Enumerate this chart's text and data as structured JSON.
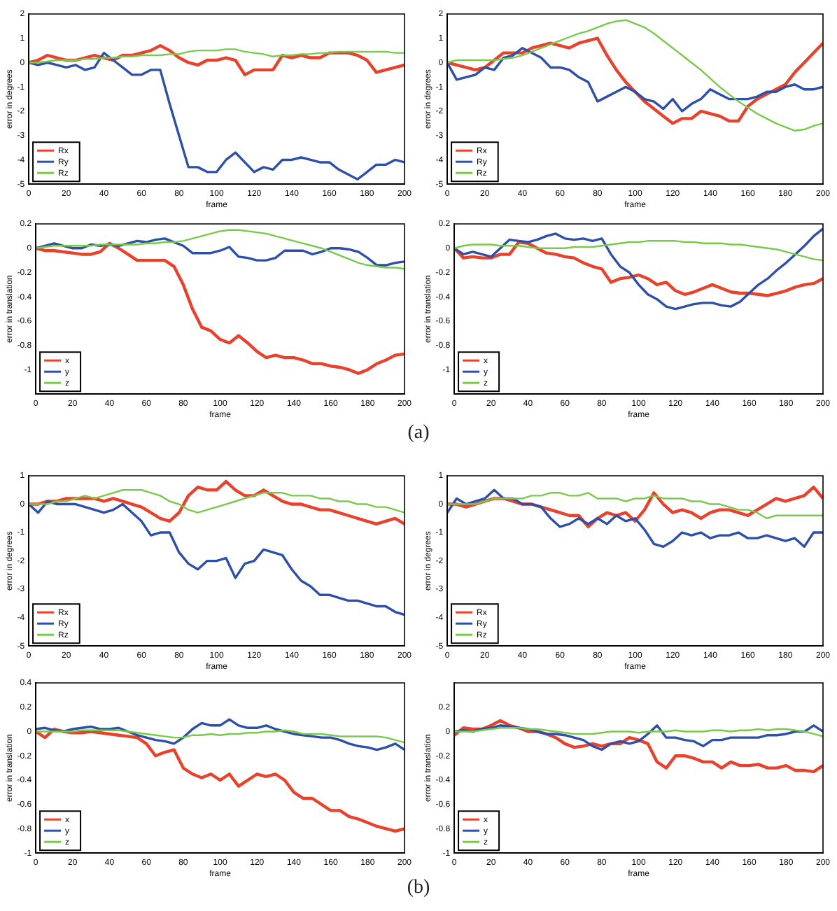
{
  "chart_data": [
    {
      "type": "line",
      "xlabel": "frame",
      "ylabel": "error in degrees",
      "legend": "bottom left",
      "xlim": [
        0,
        200
      ],
      "xticks": [
        0,
        20,
        40,
        60,
        80,
        100,
        120,
        140,
        160,
        180,
        200
      ],
      "ylim": [
        -5,
        2
      ],
      "yticks": [
        -5,
        -4,
        -3,
        -2,
        -1,
        0,
        1,
        2
      ],
      "x": [
        0,
        5,
        10,
        15,
        20,
        25,
        30,
        35,
        40,
        45,
        50,
        55,
        60,
        65,
        70,
        75,
        80,
        85,
        90,
        95,
        100,
        105,
        110,
        115,
        120,
        125,
        130,
        135,
        140,
        145,
        150,
        155,
        160,
        165,
        170,
        175,
        180,
        185,
        190,
        195,
        200
      ],
      "series": [
        {
          "name": "Rx",
          "color": "#e8412c",
          "values": [
            0,
            0.1,
            0.3,
            0.2,
            0.1,
            0.1,
            0.2,
            0.3,
            0.2,
            0.1,
            0.3,
            0.3,
            0.4,
            0.5,
            0.7,
            0.5,
            0.2,
            0.0,
            -0.1,
            0.1,
            0.1,
            0.2,
            0.1,
            -0.5,
            -0.3,
            -0.3,
            -0.3,
            0.3,
            0.2,
            0.3,
            0.2,
            0.2,
            0.4,
            0.4,
            0.4,
            0.3,
            0.1,
            -0.4,
            -0.3,
            -0.2,
            -0.1
          ]
        },
        {
          "name": "Ry",
          "color": "#2e4fa8",
          "values": [
            0,
            -0.1,
            0,
            -0.1,
            -0.2,
            -0.1,
            -0.3,
            -0.2,
            0.4,
            0.1,
            -0.2,
            -0.5,
            -0.5,
            -0.3,
            -0.3,
            -1.7,
            -3.0,
            -4.3,
            -4.3,
            -4.5,
            -4.5,
            -4.0,
            -3.7,
            -4.1,
            -4.5,
            -4.3,
            -4.4,
            -4.0,
            -4.0,
            -3.9,
            -4.0,
            -4.1,
            -4.1,
            -4.4,
            -4.6,
            -4.8,
            -4.5,
            -4.2,
            -4.2,
            -4.0,
            -4.1
          ]
        },
        {
          "name": "Rz",
          "color": "#79c94a",
          "values": [
            0,
            0,
            0.05,
            0.1,
            0.1,
            0.1,
            0.15,
            0.15,
            0.2,
            0.2,
            0.25,
            0.25,
            0.3,
            0.3,
            0.3,
            0.35,
            0.35,
            0.45,
            0.5,
            0.5,
            0.5,
            0.55,
            0.55,
            0.45,
            0.4,
            0.35,
            0.25,
            0.3,
            0.3,
            0.35,
            0.35,
            0.4,
            0.4,
            0.45,
            0.45,
            0.45,
            0.45,
            0.45,
            0.45,
            0.4,
            0.4
          ]
        }
      ]
    },
    {
      "type": "line",
      "xlabel": "frame",
      "ylabel": "error in degrees",
      "legend": "bottom left",
      "xlim": [
        0,
        200
      ],
      "xticks": [
        0,
        20,
        40,
        60,
        80,
        100,
        120,
        140,
        160,
        180,
        200
      ],
      "ylim": [
        -5,
        2
      ],
      "yticks": [
        -5,
        -4,
        -3,
        -2,
        -1,
        0,
        1,
        2
      ],
      "x": [
        0,
        5,
        10,
        15,
        20,
        25,
        30,
        35,
        40,
        45,
        50,
        55,
        60,
        65,
        70,
        75,
        80,
        85,
        90,
        95,
        100,
        105,
        110,
        115,
        120,
        125,
        130,
        135,
        140,
        145,
        150,
        155,
        160,
        165,
        170,
        175,
        180,
        185,
        190,
        195,
        200
      ],
      "series": [
        {
          "name": "Rx",
          "color": "#e8412c",
          "values": [
            0,
            -0.1,
            -0.2,
            -0.3,
            -0.2,
            0.1,
            0.4,
            0.4,
            0.4,
            0.6,
            0.7,
            0.8,
            0.7,
            0.6,
            0.8,
            0.9,
            1.0,
            0.3,
            -0.3,
            -0.8,
            -1.2,
            -1.6,
            -1.9,
            -2.2,
            -2.5,
            -2.3,
            -2.3,
            -2.0,
            -2.1,
            -2.2,
            -2.4,
            -2.4,
            -1.8,
            -1.5,
            -1.3,
            -1.1,
            -0.9,
            -0.4,
            0.0,
            0.4,
            0.8
          ]
        },
        {
          "name": "Ry",
          "color": "#2e4fa8",
          "values": [
            0,
            -0.7,
            -0.6,
            -0.5,
            -0.2,
            -0.3,
            0.2,
            0.3,
            0.6,
            0.4,
            0.2,
            -0.2,
            -0.2,
            -0.3,
            -0.6,
            -0.8,
            -1.6,
            -1.4,
            -1.2,
            -1.0,
            -1.2,
            -1.5,
            -1.6,
            -1.9,
            -1.5,
            -2.0,
            -1.7,
            -1.5,
            -1.1,
            -1.3,
            -1.5,
            -1.5,
            -1.5,
            -1.4,
            -1.2,
            -1.2,
            -1.0,
            -0.9,
            -1.1,
            -1.1,
            -1.0
          ]
        },
        {
          "name": "Rz",
          "color": "#79c94a",
          "values": [
            0,
            0.1,
            0.1,
            0.1,
            0.1,
            0.1,
            0.15,
            0.2,
            0.3,
            0.45,
            0.6,
            0.75,
            0.9,
            1.05,
            1.2,
            1.3,
            1.45,
            1.6,
            1.7,
            1.75,
            1.6,
            1.45,
            1.2,
            0.9,
            0.6,
            0.3,
            0.0,
            -0.3,
            -0.65,
            -1.0,
            -1.3,
            -1.6,
            -1.85,
            -2.1,
            -2.3,
            -2.5,
            -2.65,
            -2.8,
            -2.75,
            -2.6,
            -2.5
          ]
        }
      ]
    },
    {
      "type": "line",
      "xlabel": "frame",
      "ylabel": "error in translation",
      "legend": "bottom left",
      "xlim": [
        0,
        200
      ],
      "xticks": [
        0,
        20,
        40,
        60,
        80,
        100,
        120,
        140,
        160,
        180,
        200
      ],
      "ylim": [
        -1.2,
        0.2
      ],
      "yticks": [
        -1,
        -0.8,
        -0.6,
        -0.4,
        -0.2,
        0,
        0.2
      ],
      "x": [
        0,
        5,
        10,
        15,
        20,
        25,
        30,
        35,
        40,
        45,
        50,
        55,
        60,
        65,
        70,
        75,
        80,
        85,
        90,
        95,
        100,
        105,
        110,
        115,
        120,
        125,
        130,
        135,
        140,
        145,
        150,
        155,
        160,
        165,
        170,
        175,
        180,
        185,
        190,
        195,
        200
      ],
      "series": [
        {
          "name": "x",
          "color": "#e8412c",
          "values": [
            0,
            -0.02,
            -0.02,
            -0.03,
            -0.04,
            -0.05,
            -0.05,
            -0.03,
            0.04,
            0.0,
            -0.05,
            -0.1,
            -0.1,
            -0.1,
            -0.1,
            -0.15,
            -0.3,
            -0.5,
            -0.65,
            -0.68,
            -0.75,
            -0.78,
            -0.72,
            -0.78,
            -0.85,
            -0.9,
            -0.88,
            -0.9,
            -0.9,
            -0.92,
            -0.95,
            -0.95,
            -0.97,
            -0.98,
            -1.0,
            -1.03,
            -1.0,
            -0.95,
            -0.92,
            -0.88,
            -0.87
          ]
        },
        {
          "name": "y",
          "color": "#2e4fa8",
          "values": [
            0,
            0.02,
            0.04,
            0.02,
            0.0,
            0.0,
            0.03,
            0.02,
            0.03,
            0.02,
            0.04,
            0.06,
            0.05,
            0.07,
            0.08,
            0.05,
            0.02,
            -0.04,
            -0.04,
            -0.04,
            -0.02,
            0.01,
            -0.07,
            -0.08,
            -0.1,
            -0.1,
            -0.08,
            -0.02,
            -0.02,
            -0.02,
            -0.05,
            -0.03,
            0.0,
            0.0,
            -0.01,
            -0.03,
            -0.08,
            -0.14,
            -0.14,
            -0.12,
            -0.11
          ]
        },
        {
          "name": "z",
          "color": "#79c94a",
          "values": [
            0,
            0.01,
            0.02,
            0.02,
            0.02,
            0.02,
            0.02,
            0.03,
            0.03,
            0.03,
            0.03,
            0.03,
            0.04,
            0.04,
            0.05,
            0.05,
            0.06,
            0.08,
            0.1,
            0.12,
            0.14,
            0.15,
            0.15,
            0.14,
            0.13,
            0.12,
            0.1,
            0.08,
            0.06,
            0.04,
            0.02,
            0.0,
            -0.03,
            -0.06,
            -0.09,
            -0.12,
            -0.14,
            -0.15,
            -0.16,
            -0.16,
            -0.17
          ]
        }
      ]
    },
    {
      "type": "line",
      "xlabel": "frame",
      "ylabel": "error in translation",
      "legend": "bottom left",
      "xlim": [
        0,
        200
      ],
      "xticks": [
        0,
        20,
        40,
        60,
        80,
        100,
        120,
        140,
        160,
        180,
        200
      ],
      "ylim": [
        -1.2,
        0.2
      ],
      "yticks": [
        -1,
        -0.8,
        -0.6,
        -0.4,
        -0.2,
        0,
        0.2
      ],
      "annotations": [
        "(a)"
      ],
      "x": [
        0,
        5,
        10,
        15,
        20,
        25,
        30,
        35,
        40,
        45,
        50,
        55,
        60,
        65,
        70,
        75,
        80,
        85,
        90,
        95,
        100,
        105,
        110,
        115,
        120,
        125,
        130,
        135,
        140,
        145,
        150,
        155,
        160,
        165,
        170,
        175,
        180,
        185,
        190,
        195,
        200
      ],
      "series": [
        {
          "name": "x",
          "color": "#e8412c",
          "values": [
            0,
            -0.08,
            -0.07,
            -0.08,
            -0.08,
            -0.05,
            -0.05,
            0.05,
            0.04,
            0.0,
            -0.04,
            -0.05,
            -0.07,
            -0.08,
            -0.12,
            -0.15,
            -0.17,
            -0.28,
            -0.25,
            -0.24,
            -0.22,
            -0.25,
            -0.3,
            -0.28,
            -0.35,
            -0.38,
            -0.36,
            -0.33,
            -0.3,
            -0.33,
            -0.36,
            -0.37,
            -0.37,
            -0.38,
            -0.39,
            -0.37,
            -0.35,
            -0.32,
            -0.3,
            -0.29,
            -0.25
          ]
        },
        {
          "name": "y",
          "color": "#2e4fa8",
          "values": [
            0,
            -0.05,
            -0.03,
            -0.05,
            -0.07,
            0.0,
            0.07,
            0.06,
            0.05,
            0.07,
            0.1,
            0.12,
            0.08,
            0.07,
            0.08,
            0.06,
            0.08,
            -0.05,
            -0.15,
            -0.2,
            -0.3,
            -0.38,
            -0.42,
            -0.48,
            -0.5,
            -0.48,
            -0.46,
            -0.45,
            -0.45,
            -0.47,
            -0.48,
            -0.44,
            -0.37,
            -0.3,
            -0.25,
            -0.18,
            -0.12,
            -0.05,
            0.02,
            0.1,
            0.16
          ]
        },
        {
          "name": "z",
          "color": "#79c94a",
          "values": [
            0,
            0.02,
            0.03,
            0.03,
            0.03,
            0.02,
            0.02,
            0.02,
            0.01,
            0.0,
            0.0,
            0.0,
            0.0,
            0.01,
            0.01,
            0.01,
            0.02,
            0.03,
            0.04,
            0.05,
            0.05,
            0.06,
            0.06,
            0.06,
            0.06,
            0.05,
            0.05,
            0.04,
            0.04,
            0.04,
            0.03,
            0.03,
            0.02,
            0.01,
            0.0,
            -0.01,
            -0.03,
            -0.05,
            -0.07,
            -0.09,
            -0.1
          ]
        }
      ]
    },
    {
      "type": "line",
      "xlabel": "frame",
      "ylabel": "error in degrees",
      "legend": "bottom left",
      "xlim": [
        0,
        200
      ],
      "xticks": [
        0,
        20,
        40,
        60,
        80,
        100,
        120,
        140,
        160,
        180,
        200
      ],
      "ylim": [
        -5,
        1
      ],
      "yticks": [
        -5,
        -4,
        -3,
        -2,
        -1,
        0,
        1
      ],
      "x": [
        0,
        5,
        10,
        15,
        20,
        25,
        30,
        35,
        40,
        45,
        50,
        55,
        60,
        65,
        70,
        75,
        80,
        85,
        90,
        95,
        100,
        105,
        110,
        115,
        120,
        125,
        130,
        135,
        140,
        145,
        150,
        155,
        160,
        165,
        170,
        175,
        180,
        185,
        190,
        195,
        200
      ],
      "series": [
        {
          "name": "Rx",
          "color": "#e8412c",
          "values": [
            0,
            0,
            0.1,
            0.1,
            0.2,
            0.2,
            0.2,
            0.2,
            0.1,
            0.2,
            0.1,
            0.0,
            -0.1,
            -0.3,
            -0.5,
            -0.6,
            -0.3,
            0.3,
            0.6,
            0.5,
            0.5,
            0.8,
            0.5,
            0.3,
            0.3,
            0.5,
            0.3,
            0.1,
            0.0,
            0.0,
            -0.1,
            -0.2,
            -0.2,
            -0.3,
            -0.4,
            -0.5,
            -0.6,
            -0.7,
            -0.6,
            -0.5,
            -0.7
          ]
        },
        {
          "name": "Ry",
          "color": "#2e4fa8",
          "values": [
            0,
            -0.3,
            0.1,
            0.0,
            0.0,
            0.0,
            -0.1,
            -0.2,
            -0.3,
            -0.2,
            0.0,
            -0.3,
            -0.6,
            -1.1,
            -1.0,
            -1.0,
            -1.7,
            -2.1,
            -2.3,
            -2.0,
            -2.0,
            -1.9,
            -2.6,
            -2.1,
            -2.0,
            -1.6,
            -1.7,
            -1.8,
            -2.3,
            -2.7,
            -2.9,
            -3.2,
            -3.2,
            -3.3,
            -3.4,
            -3.4,
            -3.5,
            -3.6,
            -3.6,
            -3.8,
            -3.9
          ]
        },
        {
          "name": "Rz",
          "color": "#79c94a",
          "values": [
            0,
            0,
            0.0,
            0.1,
            0.1,
            0.2,
            0.3,
            0.2,
            0.3,
            0.4,
            0.5,
            0.5,
            0.5,
            0.4,
            0.3,
            0.1,
            0.0,
            -0.2,
            -0.3,
            -0.2,
            -0.1,
            0.0,
            0.1,
            0.2,
            0.3,
            0.4,
            0.4,
            0.4,
            0.3,
            0.3,
            0.3,
            0.2,
            0.2,
            0.1,
            0.1,
            0.0,
            0.0,
            -0.1,
            -0.1,
            -0.2,
            -0.3
          ]
        }
      ]
    },
    {
      "type": "line",
      "xlabel": "frame",
      "ylabel": "error in degrees",
      "legend": "bottom left",
      "xlim": [
        0,
        200
      ],
      "xticks": [
        0,
        20,
        40,
        60,
        80,
        100,
        120,
        140,
        160,
        180,
        200
      ],
      "ylim": [
        -5,
        1
      ],
      "yticks": [
        -5,
        -4,
        -3,
        -2,
        -1,
        0,
        1
      ],
      "x": [
        0,
        5,
        10,
        15,
        20,
        25,
        30,
        35,
        40,
        45,
        50,
        55,
        60,
        65,
        70,
        75,
        80,
        85,
        90,
        95,
        100,
        105,
        110,
        115,
        120,
        125,
        130,
        135,
        140,
        145,
        150,
        155,
        160,
        165,
        170,
        175,
        180,
        185,
        190,
        195,
        200
      ],
      "series": [
        {
          "name": "Rx",
          "color": "#e8412c",
          "values": [
            0,
            0.0,
            -0.1,
            0.0,
            0.1,
            0.2,
            0.2,
            0.1,
            0.0,
            0.0,
            -0.1,
            -0.2,
            -0.3,
            -0.4,
            -0.4,
            -0.8,
            -0.5,
            -0.3,
            -0.4,
            -0.3,
            -0.6,
            -0.2,
            0.4,
            0.0,
            -0.3,
            -0.2,
            -0.3,
            -0.5,
            -0.3,
            -0.2,
            -0.2,
            -0.3,
            -0.4,
            -0.2,
            0.0,
            0.2,
            0.1,
            0.2,
            0.3,
            0.6,
            0.2
          ]
        },
        {
          "name": "Ry",
          "color": "#2e4fa8",
          "values": [
            -0.3,
            0.2,
            0.0,
            0.1,
            0.2,
            0.5,
            0.2,
            0.2,
            0.0,
            0.0,
            -0.1,
            -0.5,
            -0.8,
            -0.7,
            -0.5,
            -0.7,
            -0.5,
            -0.7,
            -0.4,
            -0.6,
            -0.5,
            -0.9,
            -1.4,
            -1.5,
            -1.3,
            -1.0,
            -1.1,
            -1.0,
            -1.2,
            -1.1,
            -1.1,
            -1.0,
            -1.2,
            -1.2,
            -1.1,
            -1.2,
            -1.3,
            -1.2,
            -1.5,
            -1.0,
            -1.0
          ]
        },
        {
          "name": "Rz",
          "color": "#79c94a",
          "values": [
            0,
            0.0,
            0.0,
            0.0,
            0.1,
            0.2,
            0.2,
            0.2,
            0.2,
            0.3,
            0.3,
            0.4,
            0.4,
            0.3,
            0.3,
            0.4,
            0.2,
            0.2,
            0.2,
            0.1,
            0.2,
            0.2,
            0.3,
            0.2,
            0.2,
            0.2,
            0.1,
            0.1,
            0.0,
            0.0,
            -0.1,
            -0.2,
            -0.2,
            -0.3,
            -0.5,
            -0.4,
            -0.4,
            -0.4,
            -0.4,
            -0.4,
            -0.4
          ]
        }
      ]
    },
    {
      "type": "line",
      "xlabel": "frame",
      "ylabel": "error in translation",
      "legend": "bottom left",
      "xlim": [
        0,
        200
      ],
      "xticks": [
        0,
        20,
        40,
        60,
        80,
        100,
        120,
        140,
        160,
        180,
        200
      ],
      "ylim": [
        -1,
        0.4
      ],
      "yticks": [
        -1,
        -0.8,
        -0.6,
        -0.4,
        -0.2,
        0,
        0.2,
        0.4
      ],
      "x": [
        0,
        5,
        10,
        15,
        20,
        25,
        30,
        35,
        40,
        45,
        50,
        55,
        60,
        65,
        70,
        75,
        80,
        85,
        90,
        95,
        100,
        105,
        110,
        115,
        120,
        125,
        130,
        135,
        140,
        145,
        150,
        155,
        160,
        165,
        170,
        175,
        180,
        185,
        190,
        195,
        200
      ],
      "series": [
        {
          "name": "x",
          "color": "#e8412c",
          "values": [
            0,
            -0.05,
            0.02,
            0.0,
            -0.01,
            -0.01,
            0.0,
            -0.01,
            -0.02,
            -0.03,
            -0.04,
            -0.05,
            -0.1,
            -0.2,
            -0.17,
            -0.15,
            -0.3,
            -0.35,
            -0.38,
            -0.35,
            -0.4,
            -0.35,
            -0.45,
            -0.4,
            -0.35,
            -0.37,
            -0.35,
            -0.4,
            -0.5,
            -0.55,
            -0.55,
            -0.6,
            -0.65,
            -0.65,
            -0.7,
            -0.72,
            -0.75,
            -0.78,
            -0.8,
            -0.82,
            -0.8
          ]
        },
        {
          "name": "y",
          "color": "#2e4fa8",
          "values": [
            0.02,
            0.03,
            0.01,
            0.0,
            0.02,
            0.03,
            0.04,
            0.02,
            0.02,
            0.03,
            0.0,
            -0.03,
            -0.05,
            -0.07,
            -0.08,
            -0.1,
            -0.05,
            0.02,
            0.07,
            0.05,
            0.05,
            0.1,
            0.05,
            0.03,
            0.03,
            0.05,
            0.02,
            0.0,
            -0.02,
            -0.03,
            -0.04,
            -0.05,
            -0.05,
            -0.07,
            -0.1,
            -0.12,
            -0.13,
            -0.15,
            -0.13,
            -0.1,
            -0.15
          ]
        },
        {
          "name": "z",
          "color": "#79c94a",
          "values": [
            0,
            0,
            0.0,
            0.0,
            0.0,
            0.01,
            0.01,
            0.01,
            0.01,
            0.01,
            0.0,
            -0.01,
            -0.02,
            -0.03,
            -0.04,
            -0.05,
            -0.05,
            -0.03,
            -0.03,
            -0.02,
            -0.03,
            -0.02,
            -0.02,
            -0.01,
            -0.01,
            0.0,
            0.0,
            0.01,
            0.0,
            -0.02,
            -0.02,
            -0.02,
            -0.03,
            -0.04,
            -0.04,
            -0.04,
            -0.04,
            -0.04,
            -0.05,
            -0.07,
            -0.09
          ]
        }
      ]
    },
    {
      "type": "line",
      "xlabel": "frame",
      "ylabel": "error in translation",
      "legend": "bottom left",
      "xlim": [
        0,
        200
      ],
      "xticks": [
        0,
        20,
        40,
        60,
        80,
        100,
        120,
        140,
        160,
        180,
        200
      ],
      "ylim": [
        -1,
        0.4
      ],
      "yticks": [
        -1,
        -0.8,
        -0.6,
        -0.4,
        -0.2,
        0,
        0.2
      ],
      "annotations": [
        "(b)"
      ],
      "x": [
        0,
        5,
        10,
        15,
        20,
        25,
        30,
        35,
        40,
        45,
        50,
        55,
        60,
        65,
        70,
        75,
        80,
        85,
        90,
        95,
        100,
        105,
        110,
        115,
        120,
        125,
        130,
        135,
        140,
        145,
        150,
        155,
        160,
        165,
        170,
        175,
        180,
        185,
        190,
        195,
        200
      ],
      "series": [
        {
          "name": "x",
          "color": "#e8412c",
          "values": [
            -0.03,
            0.03,
            0.02,
            0.02,
            0.05,
            0.09,
            0.05,
            0.03,
            0.0,
            0.0,
            -0.02,
            -0.05,
            -0.1,
            -0.13,
            -0.12,
            -0.1,
            -0.12,
            -0.1,
            -0.1,
            -0.05,
            -0.07,
            -0.1,
            -0.25,
            -0.3,
            -0.2,
            -0.2,
            -0.22,
            -0.25,
            -0.25,
            -0.3,
            -0.25,
            -0.28,
            -0.28,
            -0.27,
            -0.3,
            -0.3,
            -0.28,
            -0.32,
            -0.32,
            -0.33,
            -0.28
          ]
        },
        {
          "name": "y",
          "color": "#2e4fa8",
          "values": [
            0,
            0.01,
            0.0,
            0.02,
            0.03,
            0.05,
            0.04,
            0.03,
            0.02,
            0.0,
            -0.02,
            -0.02,
            -0.03,
            -0.05,
            -0.07,
            -0.12,
            -0.15,
            -0.1,
            -0.08,
            -0.1,
            -0.08,
            -0.02,
            0.05,
            -0.05,
            -0.05,
            -0.07,
            -0.08,
            -0.12,
            -0.07,
            -0.07,
            -0.05,
            -0.05,
            -0.05,
            -0.05,
            -0.03,
            -0.03,
            -0.02,
            0.0,
            0.0,
            0.05,
            0.0
          ]
        },
        {
          "name": "z",
          "color": "#79c94a",
          "values": [
            0,
            0.0,
            0.0,
            0.01,
            0.02,
            0.03,
            0.03,
            0.03,
            0.02,
            0.02,
            0.01,
            0.0,
            -0.01,
            -0.02,
            -0.02,
            -0.02,
            -0.01,
            0.0,
            0.0,
            0.0,
            -0.01,
            0.0,
            0.0,
            0.0,
            0.01,
            0.0,
            0.0,
            0.0,
            0.01,
            0.01,
            0.0,
            0.01,
            0.01,
            0.02,
            0.01,
            0.02,
            0.02,
            0.01,
            0.0,
            -0.02,
            -0.04
          ]
        }
      ]
    }
  ]
}
